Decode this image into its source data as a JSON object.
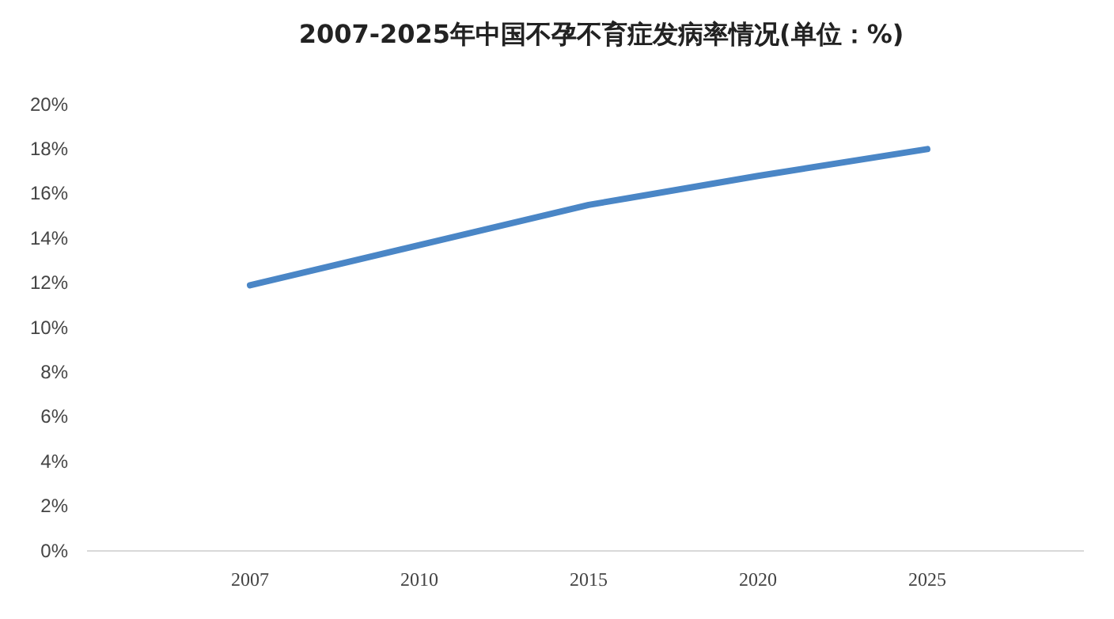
{
  "chart_data": {
    "type": "line",
    "title": "2007-2025年中国不孕不育症发病率情况(单位：%)",
    "categories": [
      "2007",
      "2010",
      "2015",
      "2020",
      "2025"
    ],
    "values": [
      11.9,
      13.7,
      15.5,
      16.8,
      18
    ],
    "color": "#4a86c6",
    "ylim": [
      0,
      20
    ],
    "yticks": [
      {
        "value": 0,
        "label": "0%"
      },
      {
        "value": 2,
        "label": "2%"
      },
      {
        "value": 4,
        "label": "4%"
      },
      {
        "value": 6,
        "label": "6%"
      },
      {
        "value": 8,
        "label": "8%"
      },
      {
        "value": 10,
        "label": "10%"
      },
      {
        "value": 12,
        "label": "12%"
      },
      {
        "value": 14,
        "label": "14%"
      },
      {
        "value": 16,
        "label": "16%"
      },
      {
        "value": 18,
        "label": "18%"
      },
      {
        "value": 20,
        "label": "20%"
      }
    ],
    "grid": false,
    "marker": "none",
    "line_style": "solid"
  }
}
